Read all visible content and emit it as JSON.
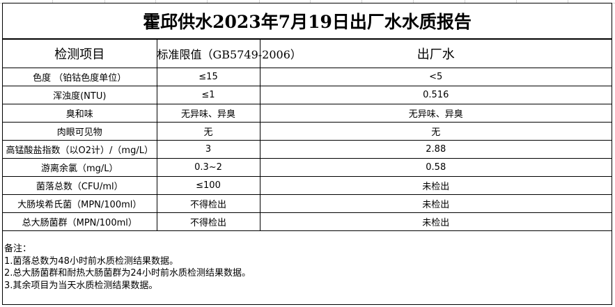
{
  "title": "霍邱供水2023年7月19日出厂水水质报告",
  "headers": [
    "检测项目",
    "标准限值（GB5749-2006）",
    "出厂水"
  ],
  "rows": [
    {
      "item": "色度 （铂钴色度单位）",
      "limit": "≤15",
      "value": "<5"
    },
    {
      "item": "浑浊度(NTU)",
      "limit": "≤1",
      "value": "0.516"
    },
    {
      "item": "臭和味",
      "limit": "无异味、异臭",
      "value": "无异味、异臭"
    },
    {
      "item": "肉眼可见物",
      "limit": "无",
      "value": "无"
    },
    {
      "item": "高锰酸盐指数（以O2计）/（mg/L）",
      "limit": "3",
      "value": "2.88"
    },
    {
      "item": "游离余氯（mg/L）",
      "limit": "0.3~2",
      "value": "0.58"
    },
    {
      "item": "菌落总数（CFU/ml）",
      "limit": "≤100",
      "value": "未检出"
    },
    {
      "item": "大肠埃希氏菌（MPN/100ml）",
      "limit": "不得检出",
      "value": "未检出"
    },
    {
      "item": "总大肠菌群（MPN/100ml）",
      "limit": "不得检出",
      "value": "未检出"
    }
  ],
  "notes": {
    "heading": "备注：",
    "lines": [
      "1.菌落总数为48小时前水质检测结果数据。",
      "2.总大肠菌群和耐热大肠菌群为24小时前水质检测结果数据。",
      "3.其余项目为当天水质检测结果数据。"
    ]
  }
}
